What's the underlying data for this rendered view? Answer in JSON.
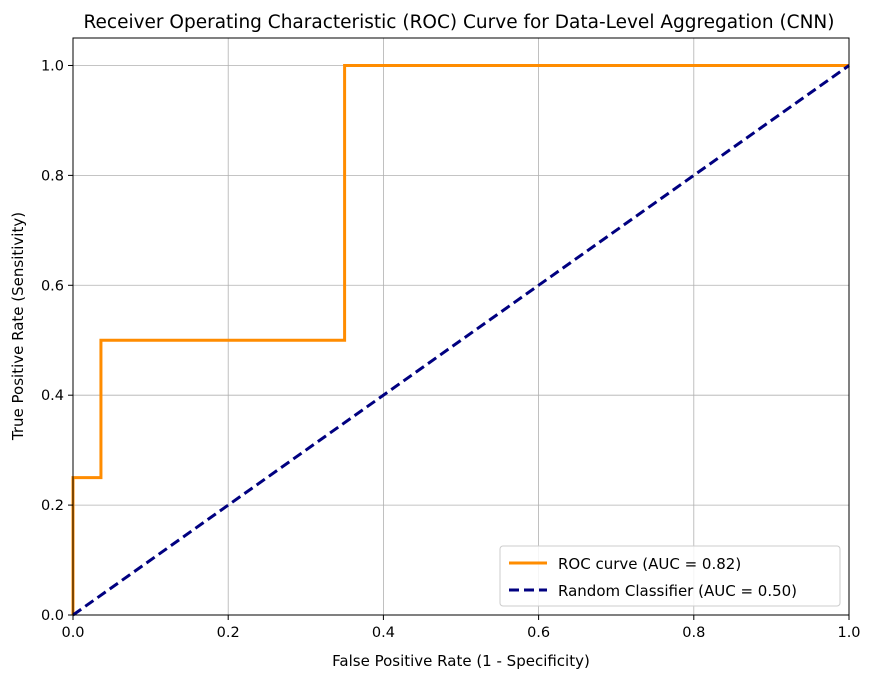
{
  "chart_data": {
    "type": "line",
    "title": "Receiver Operating Characteristic (ROC) Curve for Data-Level Aggregation (CNN)",
    "xlabel": "False Positive Rate (1 - Specificity)",
    "ylabel": "True Positive Rate (Sensitivity)",
    "xlim": [
      0,
      1
    ],
    "ylim": [
      0,
      1.05
    ],
    "xticks": [
      "0.0",
      "0.2",
      "0.4",
      "0.6",
      "0.8",
      "1.0"
    ],
    "yticks": [
      "0.0",
      "0.2",
      "0.4",
      "0.6",
      "0.8",
      "1.0"
    ],
    "grid": true,
    "legend_position": "lower-right",
    "series": [
      {
        "name": "ROC curve (AUC = 0.82)",
        "color": "#ff8c00",
        "style": "solid",
        "x": [
          0.0,
          0.0,
          0.036,
          0.036,
          0.35,
          0.35,
          1.0
        ],
        "y": [
          0.0,
          0.25,
          0.25,
          0.5,
          0.5,
          1.0,
          1.0
        ]
      },
      {
        "name": "Random Classifier (AUC = 0.50)",
        "color": "#000080",
        "style": "dashed",
        "x": [
          0.0,
          1.0
        ],
        "y": [
          0.0,
          1.0
        ]
      }
    ]
  }
}
